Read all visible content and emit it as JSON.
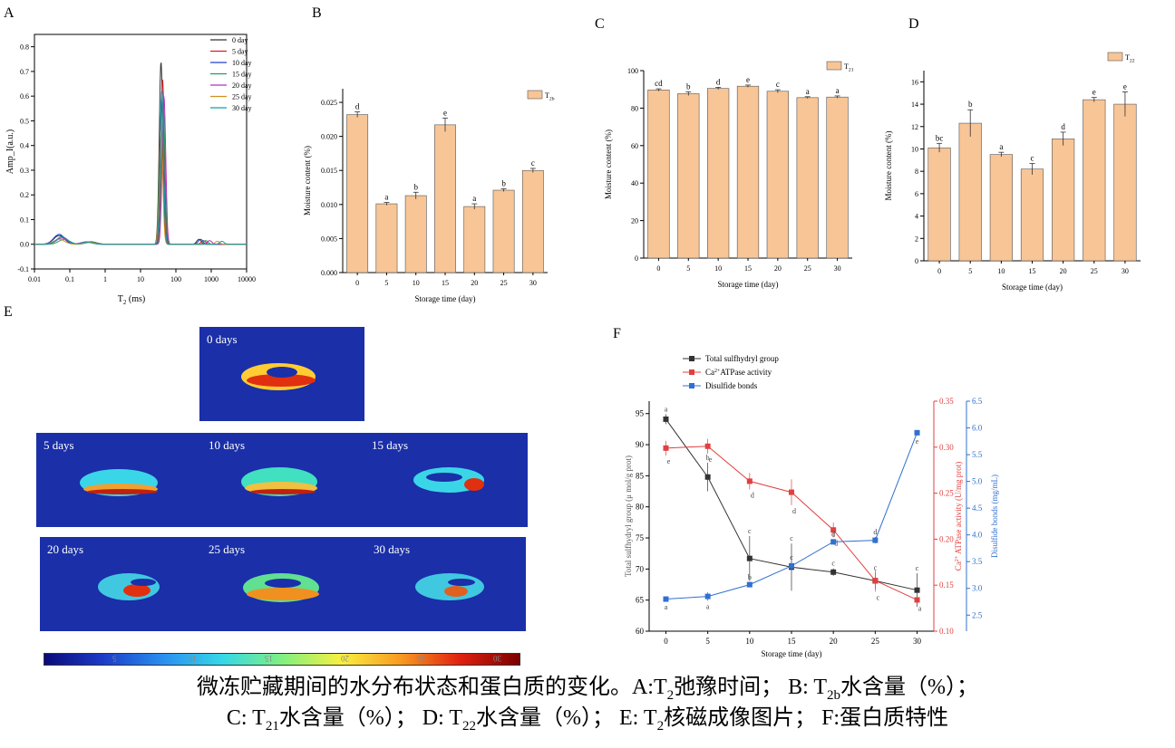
{
  "panels": {
    "A": "A",
    "B": "B",
    "C": "C",
    "D": "D",
    "E": "E",
    "F": "F"
  },
  "chart_data": [
    {
      "id": "A",
      "type": "line",
      "xlabel": "T",
      "xlabel_sub": "2",
      "xlabel_unit": "(ms)",
      "ylabel": "Amp_I(a.u.)",
      "xscale": "log",
      "xlim": [
        0.01,
        10000
      ],
      "ylim": [
        -0.1,
        0.85
      ],
      "xticks": [
        "0.01",
        "0.1",
        "1",
        "10",
        "100",
        "1000",
        "10000"
      ],
      "yticks": [
        "-0.1",
        "0.0",
        "0.1",
        "0.2",
        "0.3",
        "0.4",
        "0.5",
        "0.6",
        "0.7",
        "0.8"
      ],
      "legend_position": "top-right",
      "series": [
        {
          "name": "0 day",
          "color": "#333333",
          "peaks": [
            [
              0.05,
              0.035
            ],
            [
              0.4,
              0.01
            ],
            [
              38,
              0.74
            ],
            [
              450,
              0.02
            ]
          ]
        },
        {
          "name": "5 day",
          "color": "#d0202a",
          "peaks": [
            [
              0.06,
              0.03
            ],
            [
              0.35,
              0.008
            ],
            [
              42,
              0.67
            ],
            [
              600,
              0.015
            ]
          ]
        },
        {
          "name": "10 day",
          "color": "#2040d0",
          "peaks": [
            [
              0.05,
              0.04
            ],
            [
              0.3,
              0.01
            ],
            [
              40,
              0.62
            ],
            [
              500,
              0.02
            ]
          ]
        },
        {
          "name": "15 day",
          "color": "#20a060",
          "peaks": [
            [
              0.07,
              0.02
            ],
            [
              0.4,
              0.008
            ],
            [
              44,
              0.56
            ],
            [
              700,
              0.015
            ]
          ]
        },
        {
          "name": "20 day",
          "color": "#b030c0",
          "peaks": [
            [
              0.06,
              0.025
            ],
            [
              0.3,
              0.01
            ],
            [
              46,
              0.6
            ],
            [
              900,
              0.015
            ]
          ]
        },
        {
          "name": "25 day",
          "color": "#d09020",
          "peaks": [
            [
              0.05,
              0.02
            ],
            [
              0.35,
              0.008
            ],
            [
              38,
              0.46
            ],
            [
              1500,
              0.012
            ]
          ]
        },
        {
          "name": "30 day",
          "color": "#10a0a0",
          "peaks": [
            [
              0.06,
              0.03
            ],
            [
              0.3,
              0.008
            ],
            [
              40,
              0.61
            ],
            [
              2000,
              0.012
            ]
          ]
        }
      ]
    },
    {
      "id": "B",
      "type": "bar",
      "legend": "T",
      "legend_sub": "2b",
      "xlabel": "Storage time (day)",
      "ylabel": "Moisture content (%)",
      "ylim": [
        0,
        0.027
      ],
      "yticks": [
        "0.000",
        "0.005",
        "0.010",
        "0.015",
        "0.020",
        "0.025"
      ],
      "categories": [
        "0",
        "5",
        "10",
        "15",
        "20",
        "25",
        "30"
      ],
      "values": [
        0.0232,
        0.0101,
        0.0113,
        0.0217,
        0.0097,
        0.0121,
        0.015
      ],
      "errors": [
        0.0004,
        0.0002,
        0.0005,
        0.001,
        0.0004,
        0.0002,
        0.0003
      ],
      "letters": [
        "d",
        "a",
        "b",
        "e",
        "a",
        "b",
        "c"
      ]
    },
    {
      "id": "C",
      "type": "bar",
      "legend": "T",
      "legend_sub": "21",
      "xlabel": "Storage time (day)",
      "ylabel": "Moisture content (%)",
      "ylim": [
        0,
        100
      ],
      "yticks": [
        "0",
        "20",
        "40",
        "60",
        "80",
        "100"
      ],
      "categories": [
        "0",
        "5",
        "10",
        "15",
        "20",
        "25",
        "30"
      ],
      "values": [
        89.7,
        87.7,
        90.5,
        91.7,
        89.0,
        85.6,
        85.9
      ],
      "errors": [
        0.6,
        1.0,
        0.6,
        0.6,
        0.8,
        0.5,
        0.6
      ],
      "letters": [
        "cd",
        "b",
        "d",
        "e",
        "c",
        "a",
        "a"
      ]
    },
    {
      "id": "D",
      "type": "bar",
      "legend": "T",
      "legend_sub": "22",
      "xlabel": "Storage time (day)",
      "ylabel": "Moisture content (%)",
      "ylim": [
        0,
        17
      ],
      "yticks": [
        "0",
        "2",
        "4",
        "6",
        "8",
        "10",
        "12",
        "14",
        "16"
      ],
      "categories": [
        "0",
        "5",
        "10",
        "15",
        "20",
        "25",
        "30"
      ],
      "values": [
        10.1,
        12.3,
        9.5,
        8.2,
        10.9,
        14.4,
        14.0
      ],
      "errors": [
        0.4,
        1.2,
        0.2,
        0.5,
        0.6,
        0.2,
        1.1
      ],
      "letters": [
        "bc",
        "b",
        "a",
        "c",
        "d",
        "e",
        "e"
      ]
    },
    {
      "id": "F",
      "type": "line",
      "xlabel": "Storage time (day)",
      "ylabel_left": "Total sulfhydryl group (μ mol/g prot)",
      "ylabel_mid_pre": "Ca",
      "ylabel_mid_sup": "2+",
      "ylabel_mid_post": "ATPase activity (U/mg prot)",
      "ylabel_right": "Disulfide bonds (mg/mL)",
      "x": [
        0,
        5,
        10,
        15,
        20,
        25,
        30
      ],
      "xticks": [
        "0",
        "5",
        "10",
        "15",
        "20",
        "25",
        "30"
      ],
      "xlim": [
        -2,
        32
      ],
      "yticks_left": [
        "60",
        "65",
        "70",
        "75",
        "80",
        "85",
        "90",
        "95"
      ],
      "ylim_left": [
        60,
        97
      ],
      "yticks_mid": [
        "0.10",
        "0.15",
        "0.20",
        "0.25",
        "0.30",
        "0.35"
      ],
      "ylim_mid": [
        0.1,
        0.35
      ],
      "yticks_right": [
        "2.5",
        "3.0",
        "3.5",
        "4.0",
        "4.5",
        "5.0",
        "5.5",
        "6.0",
        "6.5"
      ],
      "ylim_right": [
        2.2,
        6.5
      ],
      "legend_position": "top-left",
      "legend": [
        {
          "name": "Total sulfhydryl group",
          "color": "#333333"
        },
        {
          "pre": "Ca",
          "sup": "2+",
          "post": "ATPase activity",
          "color": "#e04040"
        },
        {
          "name": "Disulfide bonds",
          "color": "#3070d0"
        }
      ],
      "series": [
        {
          "axis": "left",
          "color": "#333333",
          "values": [
            94.1,
            84.8,
            71.7,
            70.3,
            69.5,
            68.1,
            66.6
          ],
          "errors": [
            0.8,
            2.3,
            3.6,
            3.8,
            0.6,
            1.3,
            2.7
          ],
          "letters": [
            "a",
            "b",
            "c",
            "c",
            "c",
            "c",
            "c"
          ]
        },
        {
          "axis": "mid",
          "color": "#e04040",
          "values": [
            0.299,
            0.301,
            0.263,
            0.251,
            0.21,
            0.155,
            0.134
          ],
          "errors": [
            0.008,
            0.008,
            0.009,
            0.014,
            0.008,
            0.012,
            0.003
          ],
          "letters": [
            "e",
            "e",
            "d",
            "d",
            "d",
            "c",
            "a"
          ]
        },
        {
          "axis": "right",
          "color": "#3070d0",
          "values": [
            2.8,
            2.85,
            3.07,
            3.42,
            3.87,
            3.9,
            5.91
          ],
          "errors": [
            0.04,
            0.08,
            0.04,
            0.07,
            0.05,
            0.06,
            0.05
          ],
          "letters": [
            "a",
            "a",
            "b",
            "c",
            "d",
            "d",
            "e"
          ]
        }
      ]
    }
  ],
  "nmr_images": [
    {
      "label": "0 days"
    },
    {
      "label": "5 days"
    },
    {
      "label": "10 days"
    },
    {
      "label": "15 days"
    },
    {
      "label": "20 days"
    },
    {
      "label": "25 days"
    },
    {
      "label": "30 days"
    }
  ],
  "colorbar": {
    "ticks": [
      "5",
      "10",
      "15",
      "20",
      "25",
      "30"
    ]
  },
  "caption": {
    "line1_pre": "微冻贮藏期间的水分布状态和蛋白质的变化。A:T",
    "line1_sub1": "2",
    "line1_mid": "弛豫时间； B: T",
    "line1_sub2": "2b",
    "line1_post": "水含量（%）；",
    "line2_pre": "C: T",
    "line2_sub1": "21",
    "line2_mid1": "水含量（%）； D: T",
    "line2_sub2": "22",
    "line2_mid2": "水含量（%）； E: T",
    "line2_sub3": "2",
    "line2_post": "核磁成像图片； F:蛋白质特性"
  }
}
